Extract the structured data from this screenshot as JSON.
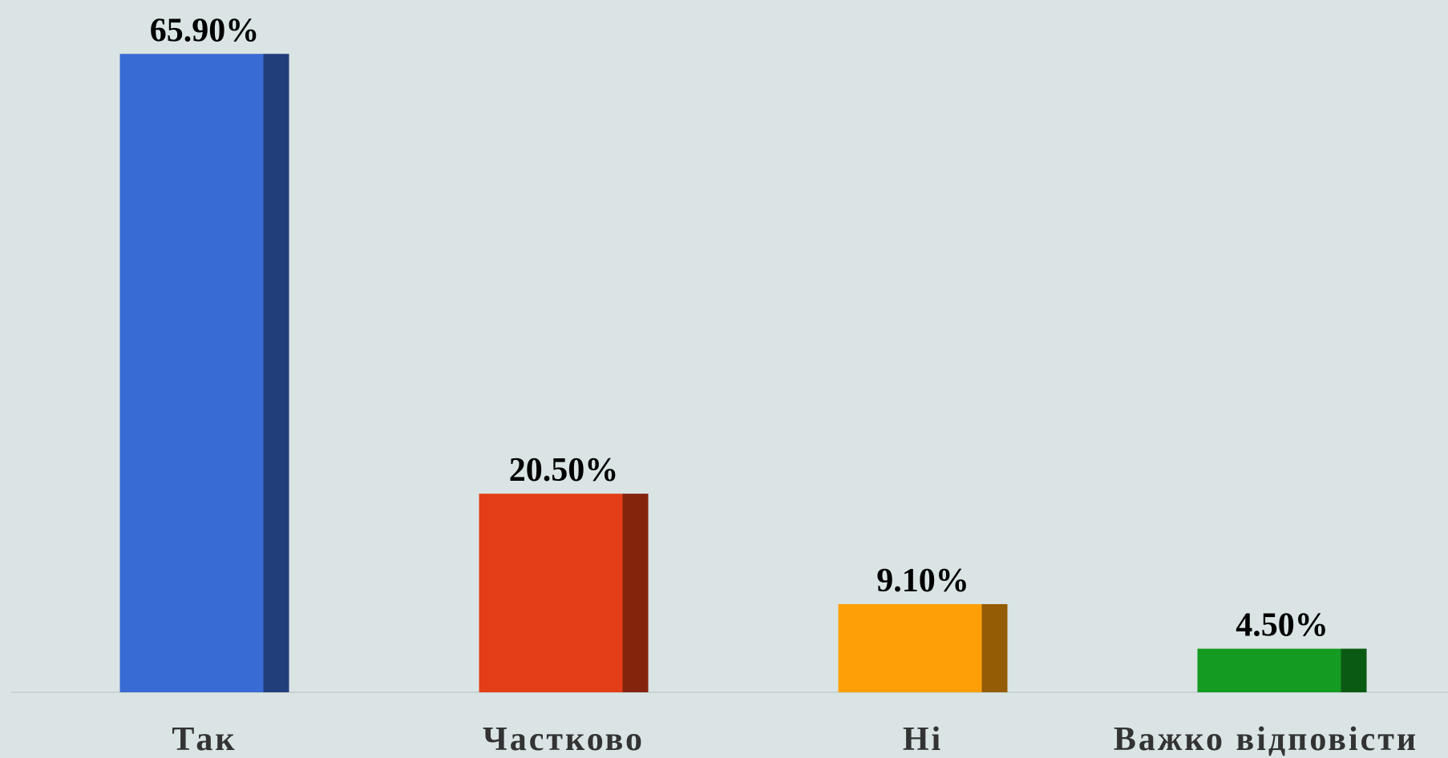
{
  "chart_data": {
    "type": "bar",
    "categories": [
      "Так",
      "Частково",
      "Ні",
      "Важко відповісти"
    ],
    "values": [
      65.9,
      20.5,
      9.1,
      4.5
    ],
    "value_labels": [
      "65.90%",
      "20.50%",
      "9.10%",
      "4.50%"
    ],
    "colors": [
      "#396bd4",
      "#e33e18",
      "#ff9f08",
      "#149b22"
    ]
  }
}
